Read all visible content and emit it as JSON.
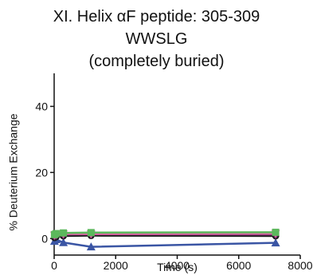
{
  "chart_data": {
    "type": "line",
    "title_lines": [
      "XI. Helix αF peptide: 305-309",
      "WWSLG",
      "(completely buried)"
    ],
    "xlabel": "Time (s)",
    "ylabel": "% Deuterium Exchange",
    "xlim": [
      0,
      8000
    ],
    "ylim": [
      -5,
      50
    ],
    "xticks": [
      0,
      2000,
      4000,
      6000,
      8000
    ],
    "yticks": [
      0,
      20,
      40
    ],
    "grid": false,
    "legend": "none",
    "x": [
      10,
      60,
      300,
      1200,
      7200
    ],
    "series": [
      {
        "color": "#3a55a4",
        "marker": "triangle",
        "values": [
          -0.8,
          -0.3,
          -1.2,
          -2.5,
          -1.3
        ]
      },
      {
        "color": "#1a1a1a",
        "marker": "circle",
        "values": [
          0.3,
          0.5,
          0.8,
          0.9,
          0.8
        ]
      },
      {
        "color": "#7a2f6e",
        "marker": "diamond",
        "values": [
          0.8,
          1.0,
          1.2,
          1.3,
          1.2
        ]
      },
      {
        "color": "#e06aa5",
        "marker": "triangle-down",
        "values": [
          1.0,
          1.2,
          1.4,
          1.4,
          1.5
        ]
      },
      {
        "color": "#5cb85c",
        "marker": "square",
        "values": [
          1.2,
          1.5,
          1.7,
          1.8,
          1.9
        ]
      }
    ]
  }
}
